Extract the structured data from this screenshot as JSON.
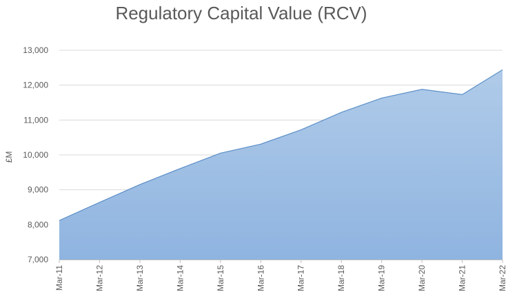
{
  "chart_data": {
    "type": "area",
    "title": "Regulatory Capital Value (RCV)",
    "xlabel": "",
    "ylabel": "£M",
    "categories": [
      "Mar-11",
      "Mar-12",
      "Mar-13",
      "Mar-14",
      "Mar-15",
      "Mar-16",
      "Mar-17",
      "Mar-18",
      "Mar-19",
      "Mar-20",
      "Mar-21",
      "Mar-22"
    ],
    "series": [
      {
        "values": [
          8120,
          8640,
          9150,
          9610,
          10050,
          10310,
          10720,
          11220,
          11630,
          11880,
          11730,
          12440
        ]
      }
    ],
    "ylim": [
      7000,
      13000
    ],
    "yticks": [
      7000,
      8000,
      9000,
      10000,
      11000,
      12000,
      13000
    ],
    "ytick_labels": [
      "7,000",
      "8,000",
      "9,000",
      "10,000",
      "11,000",
      "12,000",
      "13,000"
    ],
    "grid": true,
    "legend": "none",
    "colors": {
      "fill_top": "#b0cbe9",
      "fill_bottom": "#8fb4e0",
      "line": "#5b8fc7",
      "grid": "#d9d9d9",
      "axis": "#bfbfbf",
      "text": "#595959"
    }
  }
}
